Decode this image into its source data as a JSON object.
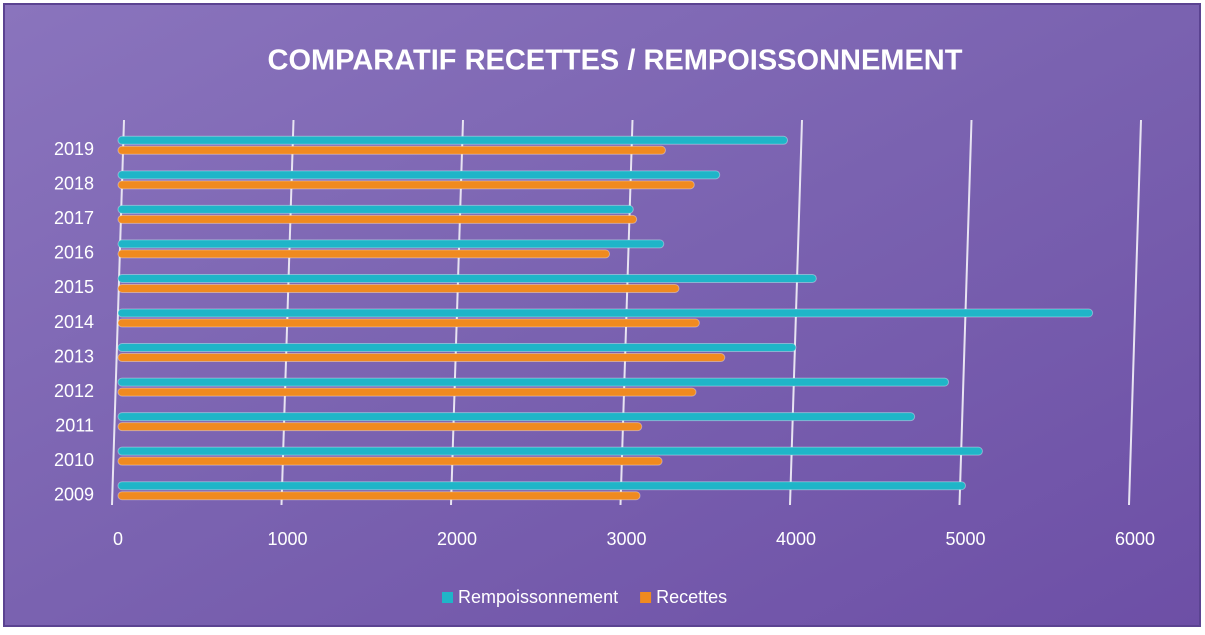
{
  "chart_data": {
    "type": "barh",
    "title": "COMPARATIF RECETTES / REMPOISSONNEMENT",
    "categories": [
      "2009",
      "2010",
      "2011",
      "2012",
      "2013",
      "2014",
      "2015",
      "2016",
      "2017",
      "2018",
      "2019"
    ],
    "series": [
      {
        "name": "Rempoissonnement",
        "color": "#1fb5c8",
        "values": [
          5000,
          5100,
          4700,
          4900,
          4000,
          5750,
          4120,
          3220,
          3040,
          3550,
          3950
        ]
      },
      {
        "name": "Recettes",
        "color": "#f08a1f",
        "values": [
          3080,
          3210,
          3090,
          3410,
          3580,
          3430,
          3310,
          2900,
          3060,
          3400,
          3230
        ]
      }
    ],
    "xlim": [
      0,
      6000
    ],
    "xticks": [
      0,
      1000,
      2000,
      3000,
      4000,
      5000,
      6000
    ],
    "grid": true,
    "legend": "bottom"
  }
}
